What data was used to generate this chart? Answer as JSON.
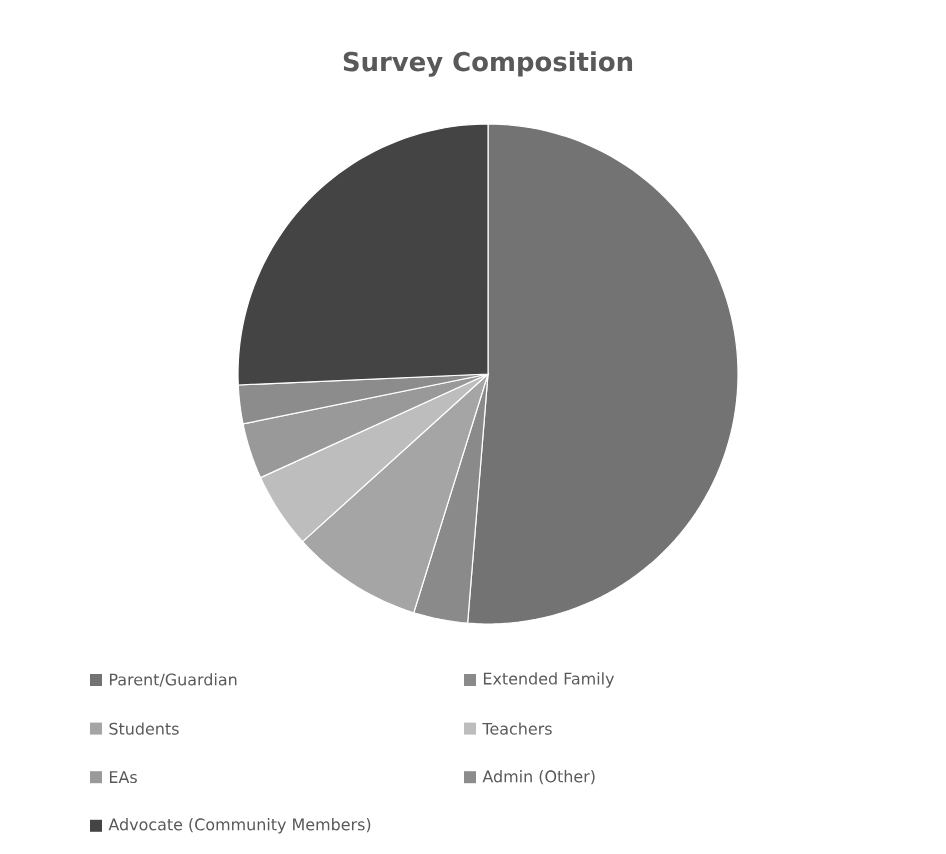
{
  "chart_data": {
    "type": "pie",
    "title": "Survey Composition",
    "categories": [
      "Parent/Guardian",
      "Extended Family",
      "Students",
      "Teachers",
      "EAs",
      "Admin (Other)",
      "Advocate (Community Members)"
    ],
    "values": [
      51.3,
      3.5,
      8.5,
      4.9,
      3.6,
      2.5,
      25.7
    ],
    "colors": [
      "#737373",
      "#8a8a8a",
      "#a5a5a5",
      "#bdbdbd",
      "#999999",
      "#8c8c8c",
      "#444444"
    ],
    "legend": "bottom"
  }
}
